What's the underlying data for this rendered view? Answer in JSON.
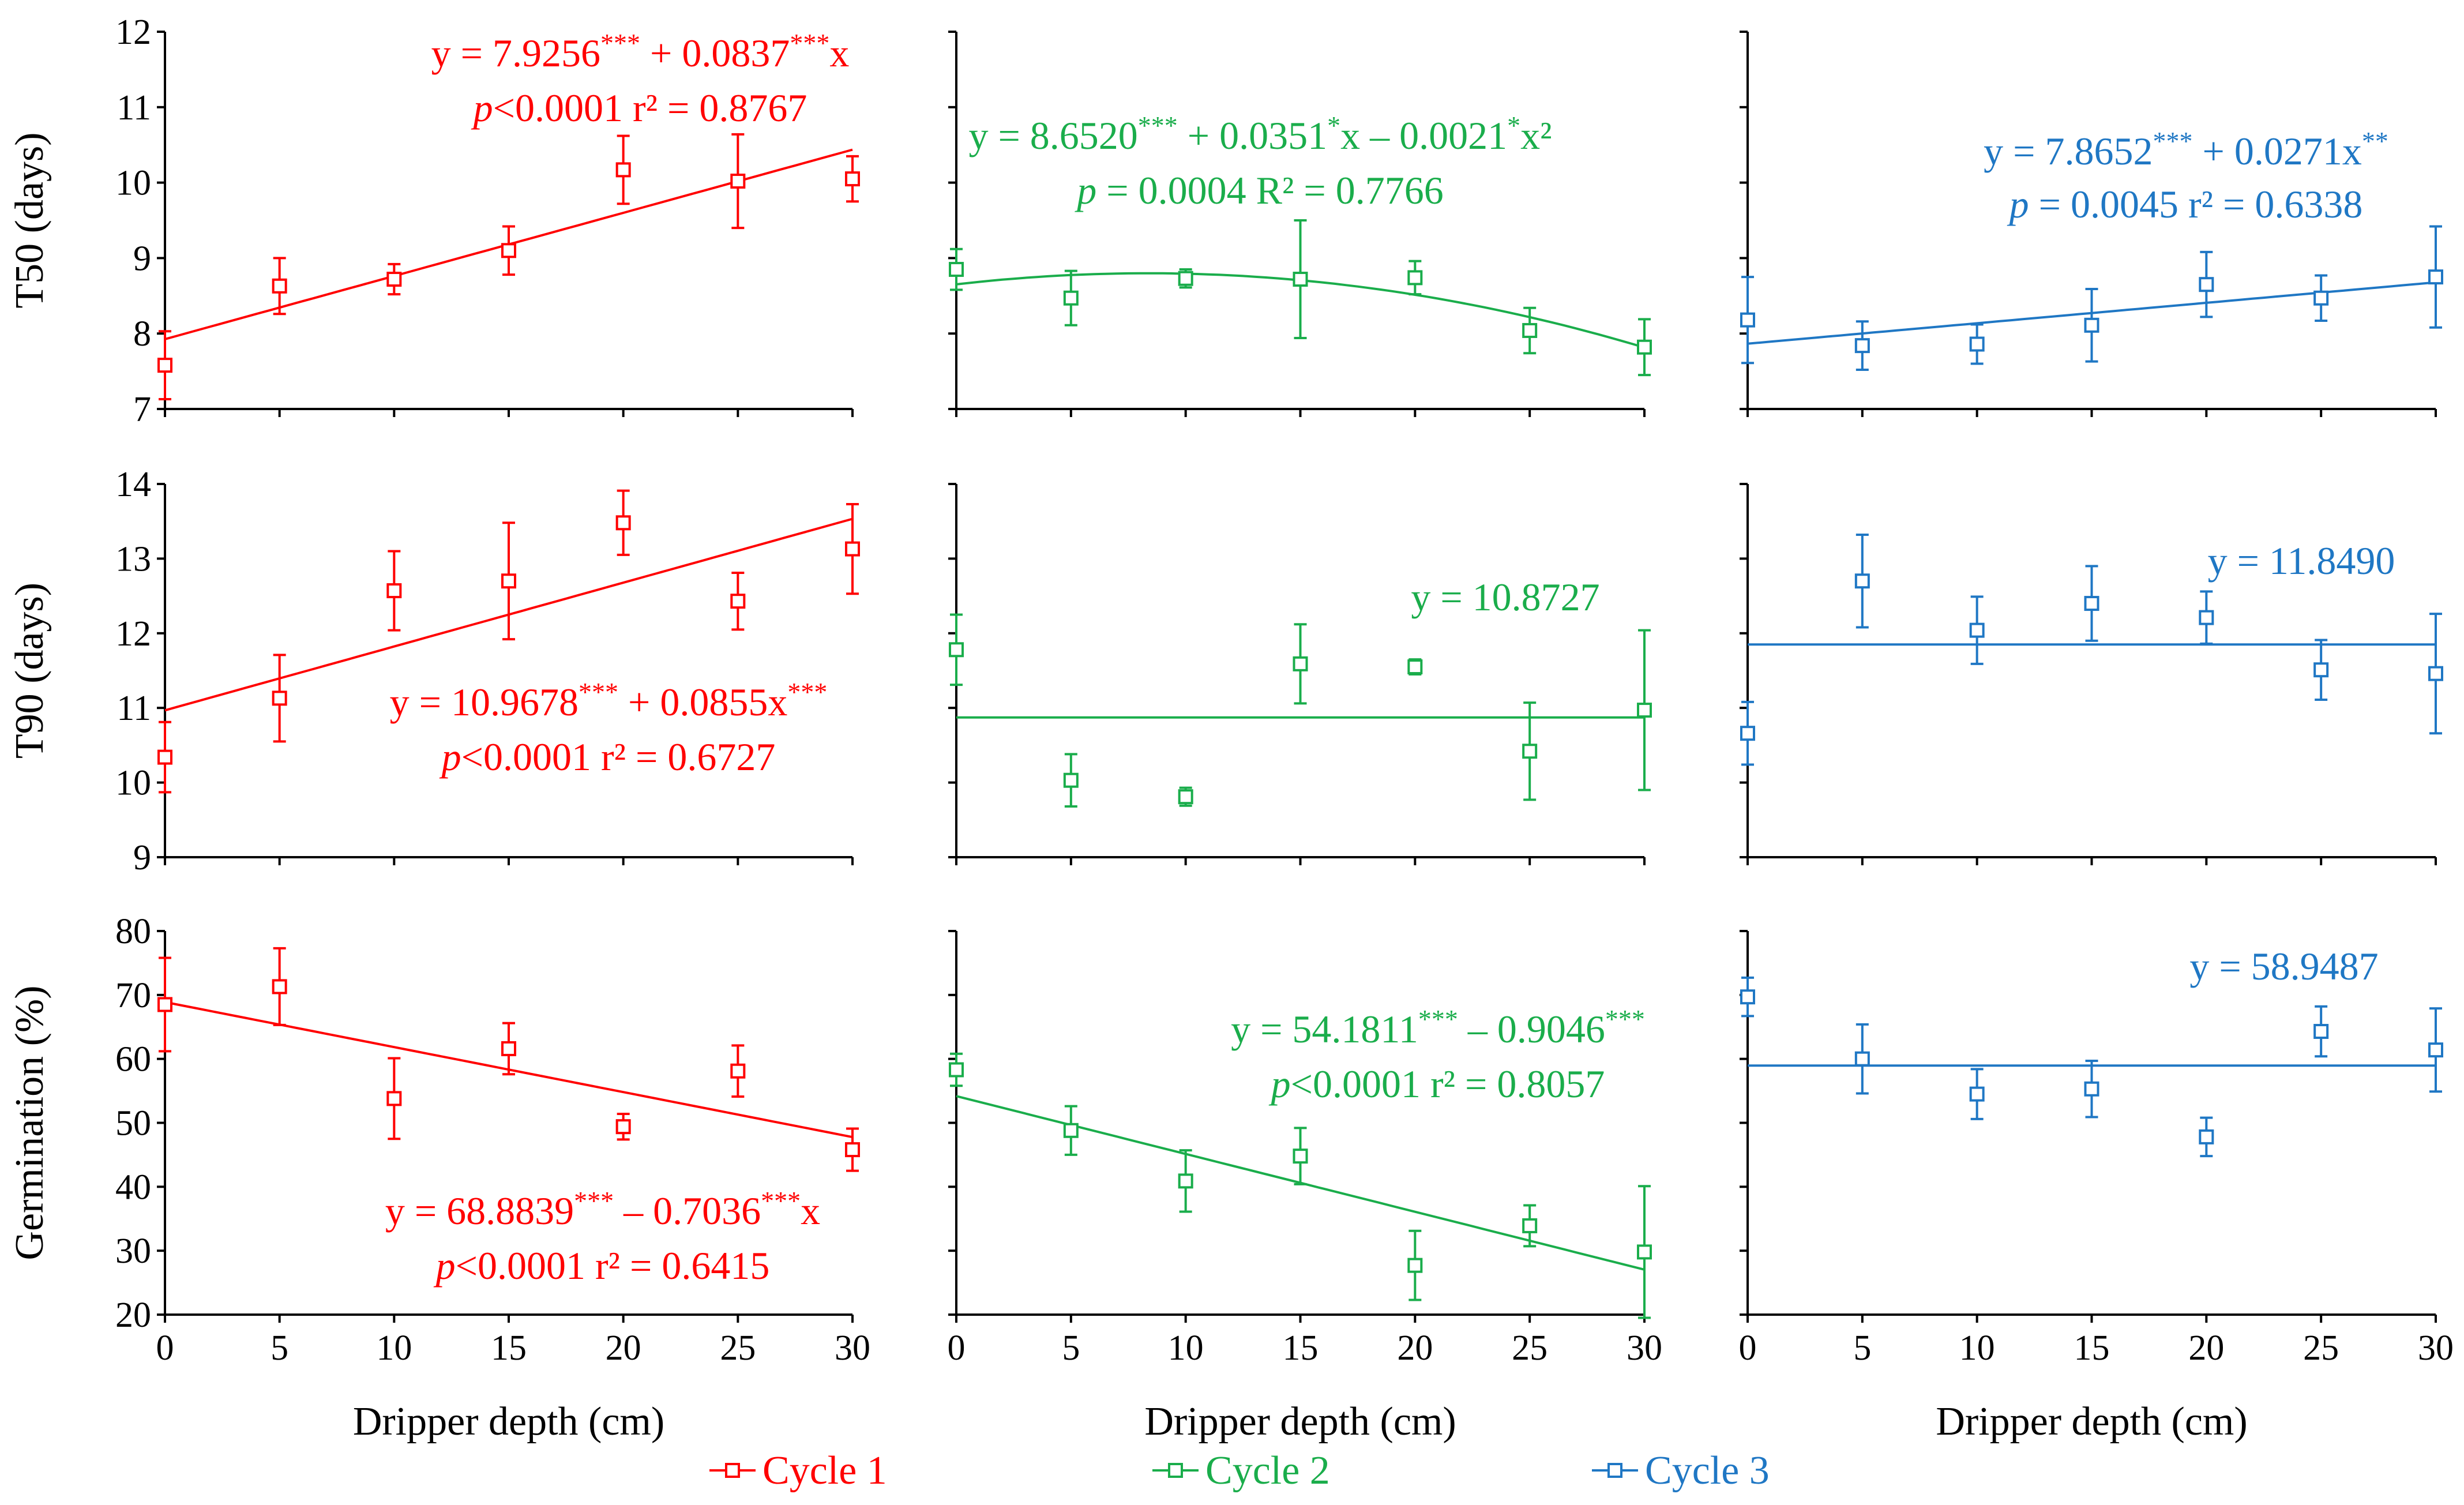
{
  "colors": {
    "cycle1": "#ff0000",
    "cycle2": "#1aad4b",
    "cycle3": "#1f77c4",
    "axis": "#000000"
  },
  "legend": [
    "Cycle 1",
    "Cycle 2",
    "Cycle 3"
  ],
  "chart_data": [
    {
      "type": "scatter",
      "row": 0,
      "col": 0,
      "series": "Cycle 1",
      "ylabel": "T50 (days)",
      "xlabel": "Dripper depth (cm)",
      "xlim": [
        0,
        30
      ],
      "ylim": [
        7,
        12
      ],
      "yticks": [
        7,
        8,
        9,
        10,
        11,
        12
      ],
      "xticks": [
        0,
        5,
        10,
        15,
        20,
        25,
        30
      ],
      "x": [
        0,
        5,
        10,
        15,
        20,
        25,
        30
      ],
      "y": [
        7.58,
        8.63,
        8.72,
        9.1,
        10.17,
        10.02,
        10.05
      ],
      "err": [
        0.45,
        0.37,
        0.2,
        0.32,
        0.45,
        0.62,
        0.3
      ],
      "fit": {
        "kind": "linear",
        "coef": [
          7.9256,
          0.0837
        ]
      },
      "equation": [
        "y = 7.9256*** + 0.0837***x",
        "p<0.0001     r² = 0.8767"
      ]
    },
    {
      "type": "scatter",
      "row": 0,
      "col": 1,
      "series": "Cycle 2",
      "ylabel": "",
      "xlabel": "Dripper depth (cm)",
      "xlim": [
        0,
        30
      ],
      "ylim": [
        7,
        12
      ],
      "yticks": [
        7,
        8,
        9,
        10,
        11,
        12
      ],
      "xticks": [
        0,
        5,
        10,
        15,
        20,
        25,
        30
      ],
      "x": [
        0,
        5,
        10,
        15,
        20,
        25,
        30
      ],
      "y": [
        8.85,
        8.47,
        8.73,
        8.72,
        8.74,
        8.04,
        7.82
      ],
      "err": [
        0.27,
        0.36,
        0.12,
        0.78,
        0.22,
        0.3,
        0.37
      ],
      "fit": {
        "kind": "quadratic",
        "coef": [
          8.652,
          0.0351,
          -0.0021
        ]
      },
      "equation": [
        "y = 8.6520*** + 0.0351*x – 0.0021*x²",
        "p = 0.0004     R² = 0.7766"
      ]
    },
    {
      "type": "scatter",
      "row": 0,
      "col": 2,
      "series": "Cycle 3",
      "ylabel": "",
      "xlabel": "Dripper depth (cm)",
      "xlim": [
        0,
        30
      ],
      "ylim": [
        7,
        12
      ],
      "yticks": [
        7,
        8,
        9,
        10,
        11,
        12
      ],
      "xticks": [
        0,
        5,
        10,
        15,
        20,
        25,
        30
      ],
      "x": [
        0,
        5,
        10,
        15,
        20,
        25,
        30
      ],
      "y": [
        8.18,
        7.84,
        7.86,
        8.11,
        8.65,
        8.47,
        8.75
      ],
      "err": [
        0.57,
        0.32,
        0.26,
        0.48,
        0.43,
        0.3,
        0.67
      ],
      "fit": {
        "kind": "linear",
        "coef": [
          7.8652,
          0.0271
        ]
      },
      "equation": [
        "y = 7.8652*** + 0.0271x**",
        "p = 0.0045     r² = 0.6338"
      ]
    },
    {
      "type": "scatter",
      "row": 1,
      "col": 0,
      "series": "Cycle 1",
      "ylabel": "T90 (days)",
      "xlabel": "Dripper depth (cm)",
      "xlim": [
        0,
        30
      ],
      "ylim": [
        9,
        14
      ],
      "yticks": [
        9,
        10,
        11,
        12,
        13,
        14
      ],
      "xticks": [
        0,
        5,
        10,
        15,
        20,
        25,
        30
      ],
      "x": [
        0,
        5,
        10,
        15,
        20,
        25,
        30
      ],
      "y": [
        10.34,
        11.13,
        12.57,
        12.7,
        13.48,
        12.43,
        13.13
      ],
      "err": [
        0.47,
        0.58,
        0.53,
        0.78,
        0.43,
        0.38,
        0.6
      ],
      "fit": {
        "kind": "linear",
        "coef": [
          10.9678,
          0.0855
        ]
      },
      "equation": [
        "y = 10.9678*** + 0.0855x***",
        "p<0.0001     r² = 0.6727"
      ]
    },
    {
      "type": "scatter",
      "row": 1,
      "col": 1,
      "series": "Cycle 2",
      "ylabel": "",
      "xlabel": "Dripper depth (cm)",
      "xlim": [
        0,
        30
      ],
      "ylim": [
        9,
        14
      ],
      "yticks": [
        9,
        10,
        11,
        12,
        13,
        14
      ],
      "xticks": [
        0,
        5,
        10,
        15,
        20,
        25,
        30
      ],
      "x": [
        0,
        5,
        10,
        15,
        20,
        25,
        30
      ],
      "y": [
        11.78,
        10.03,
        9.81,
        11.59,
        11.55,
        10.42,
        10.97
      ],
      "err": [
        0.47,
        0.35,
        0.12,
        0.53,
        0.1,
        0.65,
        1.07
      ],
      "fit": {
        "kind": "constant",
        "coef": [
          10.8727
        ]
      },
      "equation": [
        "y = 10.8727"
      ]
    },
    {
      "type": "scatter",
      "row": 1,
      "col": 2,
      "series": "Cycle 3",
      "ylabel": "",
      "xlabel": "Dripper depth (cm)",
      "xlim": [
        0,
        30
      ],
      "ylim": [
        9,
        14
      ],
      "yticks": [
        9,
        10,
        11,
        12,
        13,
        14
      ],
      "xticks": [
        0,
        5,
        10,
        15,
        20,
        25,
        30
      ],
      "x": [
        0,
        5,
        10,
        15,
        20,
        25,
        30
      ],
      "y": [
        10.66,
        12.7,
        12.04,
        12.4,
        12.21,
        11.51,
        11.46
      ],
      "err": [
        0.42,
        0.62,
        0.45,
        0.5,
        0.35,
        0.4,
        0.8
      ],
      "fit": {
        "kind": "constant",
        "coef": [
          11.849
        ]
      },
      "equation": [
        "y = 11.8490"
      ]
    },
    {
      "type": "scatter",
      "row": 2,
      "col": 0,
      "series": "Cycle 1",
      "ylabel": "Germination (%)",
      "xlabel": "Dripper depth (cm)",
      "xlim": [
        0,
        30
      ],
      "ylim": [
        20,
        80
      ],
      "yticks": [
        20,
        30,
        40,
        50,
        60,
        70,
        80
      ],
      "xticks": [
        0,
        5,
        10,
        15,
        20,
        25,
        30
      ],
      "x": [
        0,
        5,
        10,
        15,
        20,
        25,
        30
      ],
      "y": [
        68.5,
        71.3,
        53.8,
        61.6,
        49.4,
        58.1,
        45.8
      ],
      "err": [
        7.3,
        6.0,
        6.3,
        4.0,
        2.0,
        4.0,
        3.3
      ],
      "fit": {
        "kind": "linear",
        "coef": [
          68.8839,
          -0.7036
        ]
      },
      "equation": [
        "y = 68.8839*** – 0.7036***x",
        "p<0.0001     r² = 0.6415"
      ]
    },
    {
      "type": "scatter",
      "row": 2,
      "col": 1,
      "series": "Cycle 2",
      "ylabel": "",
      "xlabel": "Dripper depth (cm)",
      "xlim": [
        0,
        30
      ],
      "ylim": [
        20,
        80
      ],
      "yticks": [
        20,
        30,
        40,
        50,
        60,
        70,
        80
      ],
      "xticks": [
        0,
        5,
        10,
        15,
        20,
        25,
        30
      ],
      "x": [
        0,
        5,
        10,
        15,
        20,
        25,
        30
      ],
      "y": [
        58.3,
        48.8,
        40.9,
        44.8,
        27.7,
        33.9,
        29.8
      ],
      "err": [
        2.5,
        3.8,
        4.8,
        4.4,
        5.4,
        3.2,
        10.3
      ],
      "fit": {
        "kind": "linear",
        "coef": [
          54.1811,
          -0.9046
        ]
      },
      "equation": [
        "y = 54.1811*** – 0.9046***",
        "p<0.0001     r² = 0.8057"
      ]
    },
    {
      "type": "scatter",
      "row": 2,
      "col": 2,
      "series": "Cycle 3",
      "ylabel": "",
      "xlabel": "Dripper depth (cm)",
      "xlim": [
        0,
        30
      ],
      "ylim": [
        20,
        80
      ],
      "yticks": [
        20,
        30,
        40,
        50,
        60,
        70,
        80
      ],
      "xticks": [
        0,
        5,
        10,
        15,
        20,
        25,
        30
      ],
      "x": [
        0,
        5,
        10,
        15,
        20,
        25,
        30
      ],
      "y": [
        69.7,
        60.0,
        54.5,
        55.3,
        47.8,
        64.3,
        61.4
      ],
      "err": [
        3.0,
        5.4,
        3.9,
        4.4,
        3.0,
        3.9,
        6.5
      ],
      "fit": {
        "kind": "constant",
        "coef": [
          58.9487
        ]
      },
      "equation": [
        "y = 58.9487"
      ]
    }
  ]
}
